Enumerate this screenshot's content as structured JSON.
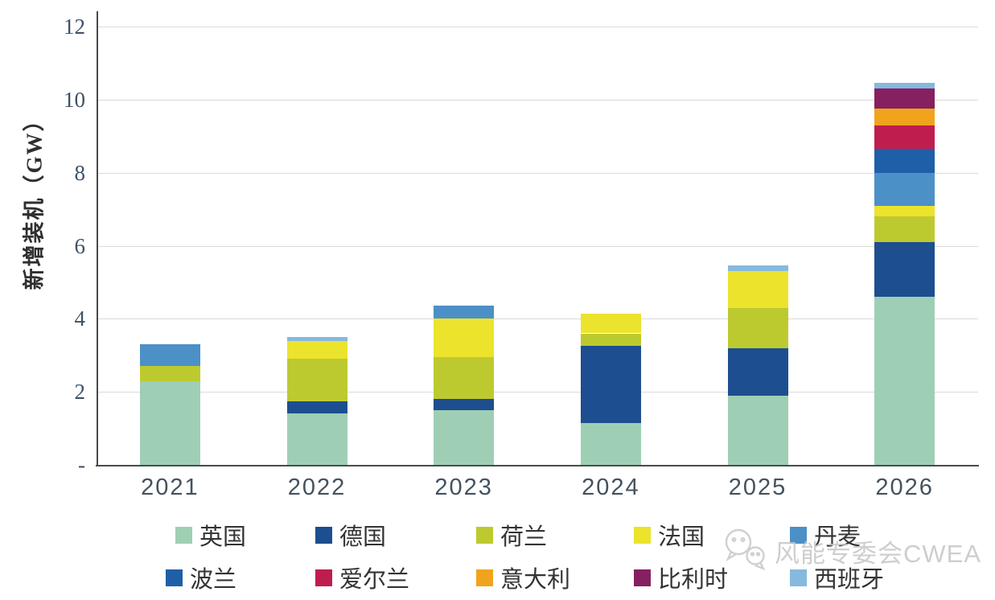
{
  "chart_data": {
    "type": "bar",
    "stacked": true,
    "title": "",
    "xlabel": "",
    "ylabel": "新增装机（GW）",
    "ylim": [
      0,
      12
    ],
    "grid": true,
    "legend_position": "bottom",
    "categories": [
      "2021",
      "2022",
      "2023",
      "2024",
      "2025",
      "2026"
    ],
    "yticks": [
      {
        "value": 12,
        "label": "12"
      },
      {
        "value": 10,
        "label": "10"
      },
      {
        "value": 8,
        "label": "8"
      },
      {
        "value": 6,
        "label": "6"
      },
      {
        "value": 4,
        "label": "4"
      },
      {
        "value": 2,
        "label": "2"
      },
      {
        "value": 0,
        "label": "-"
      }
    ],
    "series": [
      {
        "name": "英国",
        "color": "#9ecfb4",
        "values": [
          2.3,
          1.4,
          1.5,
          1.15,
          1.9,
          4.6
        ]
      },
      {
        "name": "德国",
        "color": "#1d4e8f",
        "values": [
          0,
          0.35,
          0.3,
          2.1,
          1.3,
          1.5
        ]
      },
      {
        "name": "荷兰",
        "color": "#bdca2f",
        "values": [
          0.4,
          1.15,
          1.15,
          0.35,
          1.1,
          0.7
        ]
      },
      {
        "name": "法国",
        "color": "#ece32d",
        "values": [
          0,
          0.5,
          1.05,
          0.55,
          1.0,
          0.3
        ]
      },
      {
        "name": "丹麦",
        "color": "#4b90c7",
        "values": [
          0.6,
          0,
          0.35,
          0,
          0,
          0.9
        ]
      },
      {
        "name": "波兰",
        "color": "#1f5fa7",
        "values": [
          0,
          0,
          0,
          0,
          0,
          0.65
        ]
      },
      {
        "name": "爱尔兰",
        "color": "#c01d4f",
        "values": [
          0,
          0,
          0,
          0,
          0,
          0.65
        ]
      },
      {
        "name": "意大利",
        "color": "#f0a41d",
        "values": [
          0,
          0,
          0,
          0,
          0,
          0.45
        ]
      },
      {
        "name": "比利时",
        "color": "#862061",
        "values": [
          0,
          0,
          0,
          0,
          0,
          0.55
        ]
      },
      {
        "name": "西班牙",
        "color": "#85b9de",
        "values": [
          0,
          0.1,
          0,
          0,
          0.15,
          0.15
        ]
      }
    ],
    "legend_rows": [
      [
        "英国",
        "德国",
        "荷兰",
        "法国",
        "丹麦"
      ],
      [
        "波兰",
        "爱尔兰",
        "意大利",
        "比利时",
        "西班牙"
      ]
    ]
  },
  "watermark": {
    "text": "风能专委会CWEA",
    "icon": "wechat-icon"
  }
}
